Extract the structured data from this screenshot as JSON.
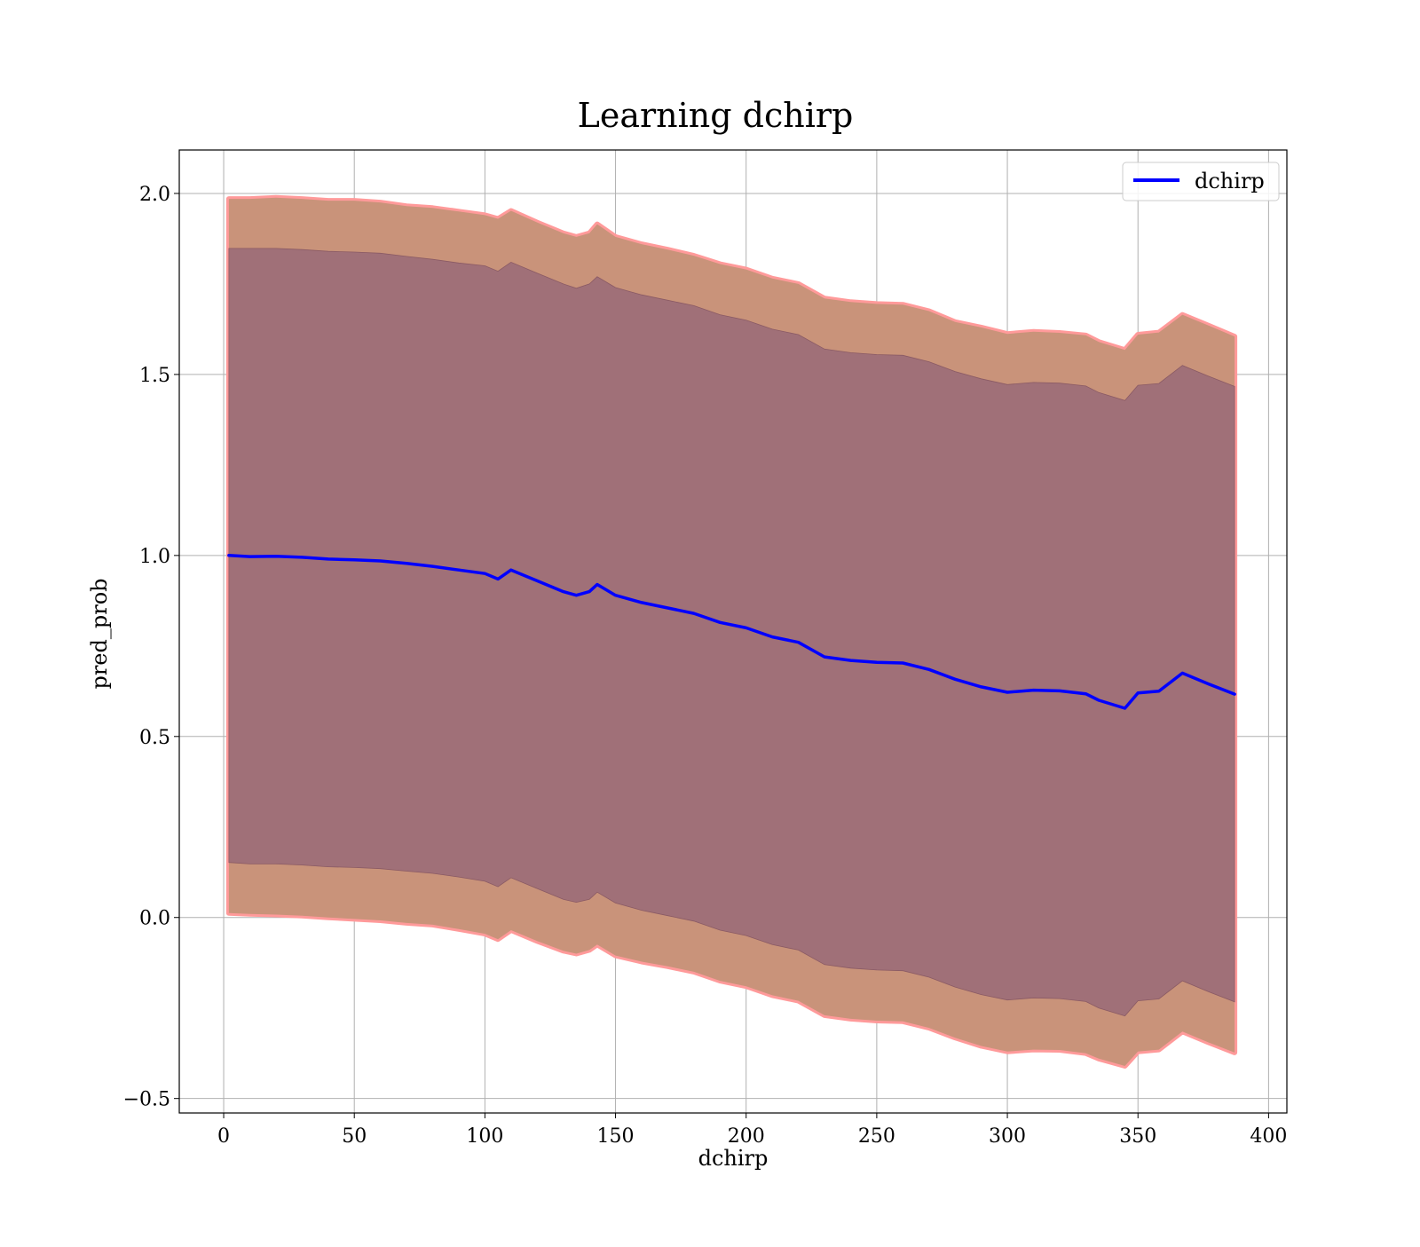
{
  "chart_data": {
    "type": "area",
    "title": "Learning dchirp",
    "xlabel": "dchirp",
    "ylabel": "pred_prob",
    "xlim": [
      -17,
      407
    ],
    "ylim": [
      -0.54,
      2.12
    ],
    "xticks": [
      0,
      50,
      100,
      150,
      200,
      250,
      300,
      350,
      400
    ],
    "xtick_labels": [
      "0",
      "50",
      "100",
      "150",
      "200",
      "250",
      "300",
      "350",
      "400"
    ],
    "yticks": [
      -0.5,
      0.0,
      0.5,
      1.0,
      1.5,
      2.0
    ],
    "ytick_labels": [
      "−0.5",
      "0.0",
      "0.5",
      "1.0",
      "1.5",
      "2.0"
    ],
    "grid": true,
    "legend": {
      "position": "top-right",
      "entries": [
        "dchirp"
      ]
    },
    "colors": {
      "mean_line": "#0000ff",
      "outer_band_edge": "#ff9a9a",
      "outer_band": "#c9937a",
      "inner_band": "#a07078",
      "grid": "#b0b0b0"
    },
    "x": [
      2,
      10,
      20,
      30,
      40,
      50,
      60,
      70,
      80,
      90,
      100,
      105,
      110,
      120,
      130,
      135,
      140,
      143,
      150,
      160,
      170,
      180,
      190,
      200,
      210,
      220,
      230,
      240,
      250,
      260,
      270,
      280,
      290,
      300,
      310,
      320,
      330,
      335,
      345,
      350,
      358,
      367,
      377,
      387
    ],
    "series": [
      {
        "name": "dchirp",
        "role": "mean",
        "values": [
          1.0,
          0.997,
          0.998,
          0.995,
          0.99,
          0.988,
          0.985,
          0.978,
          0.97,
          0.96,
          0.95,
          0.935,
          0.96,
          0.93,
          0.9,
          0.89,
          0.9,
          0.92,
          0.89,
          0.87,
          0.855,
          0.84,
          0.815,
          0.8,
          0.775,
          0.76,
          0.72,
          0.71,
          0.705,
          0.703,
          0.685,
          0.658,
          0.637,
          0.622,
          0.628,
          0.626,
          0.618,
          0.6,
          0.578,
          0.62,
          0.625,
          0.675,
          0.645,
          0.617
        ]
      },
      {
        "name": "",
        "role": "outer_band_upper",
        "values": [
          1.985,
          1.985,
          1.988,
          1.985,
          1.98,
          1.98,
          1.975,
          1.965,
          1.96,
          1.95,
          1.94,
          1.93,
          1.952,
          1.92,
          1.89,
          1.88,
          1.89,
          1.915,
          1.88,
          1.86,
          1.845,
          1.828,
          1.805,
          1.79,
          1.765,
          1.75,
          1.71,
          1.7,
          1.695,
          1.693,
          1.675,
          1.645,
          1.63,
          1.612,
          1.618,
          1.615,
          1.608,
          1.59,
          1.568,
          1.61,
          1.616,
          1.665,
          1.635,
          1.605
        ]
      },
      {
        "name": "",
        "role": "inner_band_upper",
        "values": [
          1.848,
          1.848,
          1.848,
          1.845,
          1.84,
          1.838,
          1.835,
          1.826,
          1.818,
          1.808,
          1.8,
          1.785,
          1.81,
          1.78,
          1.75,
          1.738,
          1.75,
          1.77,
          1.74,
          1.72,
          1.705,
          1.69,
          1.665,
          1.65,
          1.625,
          1.61,
          1.57,
          1.56,
          1.555,
          1.553,
          1.535,
          1.508,
          1.488,
          1.472,
          1.478,
          1.476,
          1.468,
          1.45,
          1.428,
          1.47,
          1.475,
          1.525,
          1.495,
          1.467
        ]
      },
      {
        "name": "",
        "role": "inner_band_lower",
        "values": [
          0.152,
          0.148,
          0.148,
          0.145,
          0.14,
          0.138,
          0.135,
          0.128,
          0.122,
          0.112,
          0.1,
          0.085,
          0.11,
          0.08,
          0.05,
          0.042,
          0.05,
          0.07,
          0.04,
          0.02,
          0.005,
          -0.01,
          -0.035,
          -0.05,
          -0.075,
          -0.09,
          -0.13,
          -0.14,
          -0.145,
          -0.147,
          -0.165,
          -0.192,
          -0.213,
          -0.228,
          -0.222,
          -0.224,
          -0.232,
          -0.25,
          -0.272,
          -0.23,
          -0.225,
          -0.175,
          -0.205,
          -0.233
        ]
      },
      {
        "name": "",
        "role": "outer_band_lower",
        "values": [
          0.012,
          0.01,
          0.008,
          0.005,
          0.0,
          -0.004,
          -0.008,
          -0.015,
          -0.02,
          -0.032,
          -0.045,
          -0.06,
          -0.035,
          -0.065,
          -0.092,
          -0.1,
          -0.09,
          -0.075,
          -0.105,
          -0.122,
          -0.135,
          -0.15,
          -0.175,
          -0.19,
          -0.215,
          -0.23,
          -0.27,
          -0.28,
          -0.285,
          -0.287,
          -0.305,
          -0.332,
          -0.355,
          -0.37,
          -0.365,
          -0.366,
          -0.375,
          -0.39,
          -0.41,
          -0.37,
          -0.365,
          -0.315,
          -0.345,
          -0.373
        ]
      }
    ]
  }
}
